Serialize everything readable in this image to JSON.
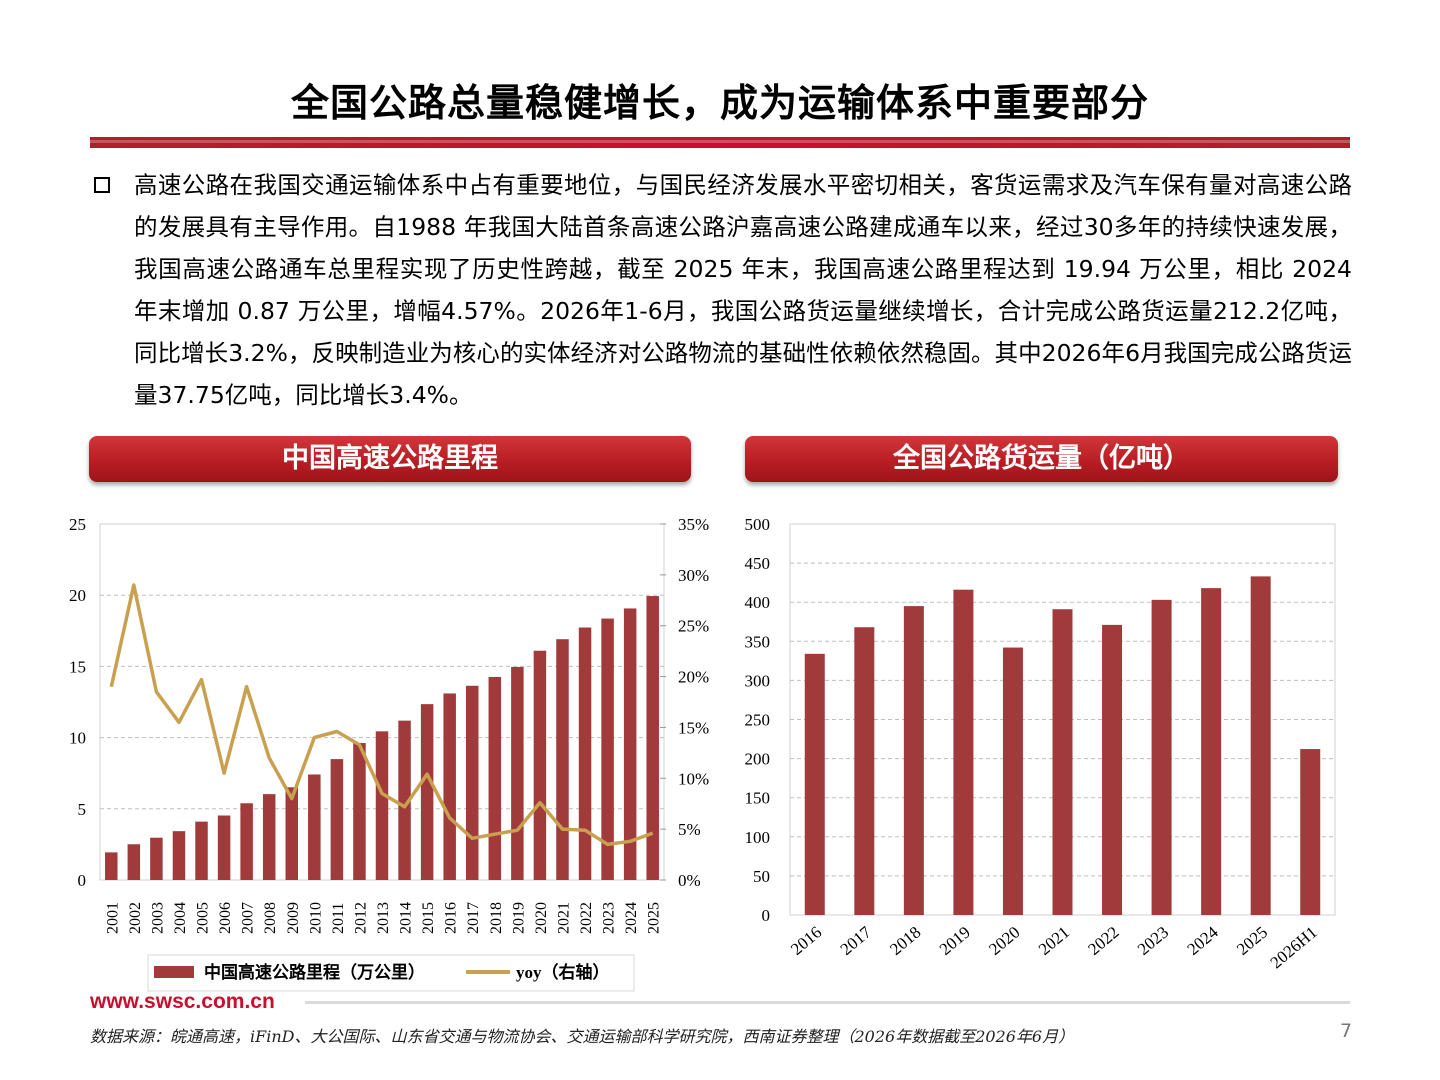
{
  "title": "全国公路总量稳健增长，成为运输体系中重要部分",
  "paragraph": "高速公路在我国交通运输体系中占有重要地位，与国民经济发展水平密切相关，客货运需求及汽车保有量对高速公路的发展具有主导作用。自1988  年我国大陆首条高速公路沪嘉高速公路建成通车以来，经过30多年的持续快速发展，我国高速公路通车总里程实现了历史性跨越，截至  2025  年末，我国高速公路里程达到 19.94 万公里，相比 2024 年末增加 0.87 万公里，增幅4.57%。2026年1-6月，我国公路货运量继续增长，合计完成公路货运量212.2亿吨，同比增长3.2%，反映制造业为核心的实体经济对公路物流的基础性依赖依然稳固。其中2026年6月我国完成公路货运量37.75亿吨，同比增长3.4%。",
  "left_panel_title": "中国高速公路里程",
  "right_panel_title": "全国公路货运量（亿吨）",
  "site": "www.swsc.com.cn",
  "source": "数据来源：皖通高速，iFinD、大公国际、山东省交通与物流协会、交通运输部科学研究院，西南证券整理（2026年数据截至2026年6月）",
  "page_number": "7",
  "colors": {
    "bar": "#a13b3b",
    "line": "#c9a04f",
    "accent": "#c8102e"
  },
  "chart_data": [
    {
      "type": "bar+line",
      "categories": [
        "2001",
        "2002",
        "2003",
        "2004",
        "2005",
        "2006",
        "2007",
        "2008",
        "2009",
        "2010",
        "2011",
        "2012",
        "2013",
        "2014",
        "2015",
        "2016",
        "2017",
        "2018",
        "2019",
        "2020",
        "2021",
        "2022",
        "2023",
        "2024",
        "2025"
      ],
      "series": [
        {
          "name": "中国高速公路里程（万公里）",
          "type": "bar",
          "axis": "left",
          "values": [
            1.94,
            2.51,
            2.97,
            3.43,
            4.1,
            4.53,
            5.39,
            6.03,
            6.51,
            7.41,
            8.49,
            9.62,
            10.44,
            11.19,
            12.35,
            13.1,
            13.64,
            14.26,
            14.96,
            16.1,
            16.91,
            17.73,
            18.36,
            19.07,
            19.94
          ]
        },
        {
          "name": "yoy（右轴）",
          "type": "line",
          "axis": "right",
          "values": [
            0.19,
            0.29,
            0.185,
            0.155,
            0.197,
            0.105,
            0.19,
            0.12,
            0.08,
            0.14,
            0.146,
            0.133,
            0.085,
            0.072,
            0.104,
            0.061,
            0.041,
            0.045,
            0.049,
            0.076,
            0.05,
            0.049,
            0.035,
            0.038,
            0.046
          ]
        }
      ],
      "yleft": {
        "min": 0,
        "max": 25,
        "ticks": [
          "0",
          "5",
          "10",
          "15",
          "20",
          "25"
        ]
      },
      "yright": {
        "min": 0,
        "max": 0.35,
        "ticks": [
          "0%",
          "5%",
          "10%",
          "15%",
          "20%",
          "25%",
          "30%",
          "35%"
        ]
      },
      "legend": "bottom"
    },
    {
      "type": "bar",
      "categories": [
        "2016",
        "2017",
        "2018",
        "2019",
        "2020",
        "2021",
        "2022",
        "2023",
        "2024",
        "2025",
        "2026H1"
      ],
      "values": [
        334,
        368,
        395,
        416,
        342,
        391,
        371,
        403,
        418,
        433,
        212.2
      ],
      "ylim": [
        0,
        500
      ],
      "yticks": [
        "0",
        "50",
        "100",
        "150",
        "200",
        "250",
        "300",
        "350",
        "400",
        "450",
        "500"
      ]
    }
  ]
}
